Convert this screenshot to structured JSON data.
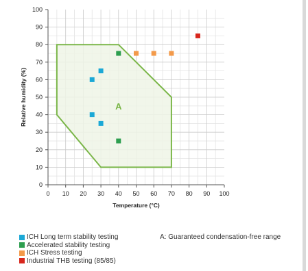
{
  "chart_data": {
    "type": "scatter",
    "xlabel": "Temperature (°C)",
    "ylabel": "Relative humidity (%)",
    "xlim": [
      0,
      100
    ],
    "ylim": [
      0,
      100
    ],
    "x_ticks": [
      0,
      10,
      20,
      30,
      40,
      50,
      60,
      70,
      80,
      90,
      100
    ],
    "y_ticks": [
      0,
      10,
      20,
      30,
      40,
      50,
      60,
      70,
      80,
      90,
      100
    ],
    "minor_grid_step": 5,
    "grid": true,
    "region": {
      "label": "A",
      "label_position": [
        40,
        45
      ],
      "color": "#7ab648",
      "fill": "#eef5e6",
      "polygon": [
        [
          5,
          80
        ],
        [
          40,
          80
        ],
        [
          70,
          50
        ],
        [
          70,
          10
        ],
        [
          30,
          10
        ],
        [
          5,
          40
        ]
      ]
    },
    "series": [
      {
        "name": "ICH Long term stability testing",
        "color": "#1ba8d6",
        "points": [
          [
            25,
            60
          ],
          [
            30,
            65
          ],
          [
            25,
            40
          ],
          [
            30,
            35
          ]
        ]
      },
      {
        "name": "Accelerated stability testing",
        "color": "#2d9e4f",
        "points": [
          [
            40,
            75
          ],
          [
            40,
            25
          ]
        ]
      },
      {
        "name": "ICH Stress testing",
        "color": "#f39a4a",
        "points": [
          [
            50,
            75
          ],
          [
            60,
            75
          ],
          [
            70,
            75
          ]
        ]
      },
      {
        "name": "Industrial THB testing (85/85)",
        "color": "#d7261c",
        "points": [
          [
            85,
            85
          ]
        ]
      }
    ],
    "annotation": "A: Guaranteed condensation-free range",
    "legend_position": "bottom-left"
  }
}
